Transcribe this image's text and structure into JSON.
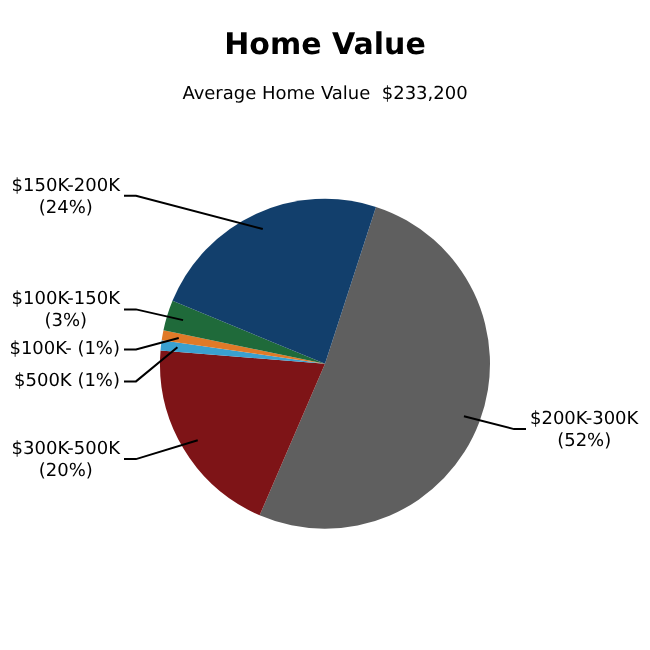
{
  "chart_data": {
    "type": "pie",
    "title": "Home Value",
    "subtitle": "Average Home Value  $233,200",
    "categories": [
      "$200K-300K",
      "$300K-500K",
      "$500K",
      "$100K-",
      "$100K-150K",
      "$150K-200K"
    ],
    "values": [
      52,
      20,
      1,
      1,
      3,
      24
    ],
    "value_labels": [
      "(52%)",
      "(20%)",
      "(1%)",
      "(1%)",
      "(3%)",
      "(24%)"
    ],
    "colors": [
      "#5f5f5f",
      "#7e1417",
      "#3aa0d0",
      "#e07a28",
      "#1f6a3a",
      "#123f6c"
    ],
    "legend": false
  }
}
